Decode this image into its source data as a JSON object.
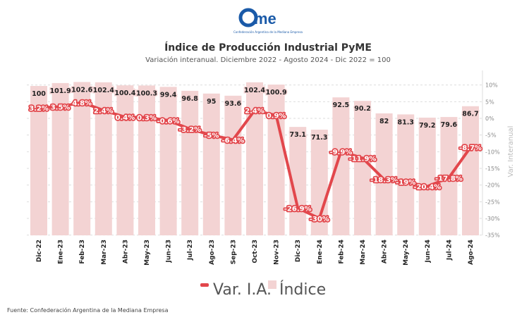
{
  "logo": {
    "text": "came",
    "tagline": "Confederación Argentina de la Mediana Empresa",
    "color": "#1a5aa8"
  },
  "chart_data": {
    "type": "bar+line",
    "title": "Índice de Producción Industrial PyME",
    "subtitle": "Variación interanual. Diciembre 2022 - Agosto 2024 - Dic 2022 = 100",
    "categories": [
      "Dic-22",
      "Ene-23",
      "Feb-23",
      "Mar-23",
      "Abr-23",
      "May-23",
      "Jun-23",
      "Jul-23",
      "Ago-23",
      "Sep-23",
      "Oct-23",
      "Nov-23",
      "Dic-23",
      "Ene-24",
      "Feb-24",
      "Mar-24",
      "Abr-24",
      "May-24",
      "Jun-24",
      "Jul-24",
      "Ago-24"
    ],
    "series": [
      {
        "name": "Var. I.A.",
        "type": "line",
        "color": "#e2474c",
        "unit": "%",
        "axis": "right",
        "values": [
          3.2,
          3.5,
          4.8,
          2.4,
          0.4,
          0.3,
          -0.6,
          -3.2,
          -5,
          -6.4,
          2.4,
          0.9,
          -26.9,
          -30,
          -9.9,
          -11.9,
          -18.3,
          -19,
          -20.4,
          -17.8,
          -8.7
        ]
      },
      {
        "name": "Índice",
        "type": "bar",
        "color": "#f3d3d3",
        "axis": "left-hidden",
        "values": [
          100,
          101.9,
          102.6,
          102.4,
          100.4,
          100.3,
          99.4,
          96.8,
          95,
          93.6,
          102.4,
          100.9,
          73.1,
          71.3,
          92.5,
          90.2,
          82,
          81.3,
          79.2,
          79.6,
          86.7
        ]
      }
    ],
    "y_right": {
      "label": "Var. Interanual",
      "range": [
        -35,
        10
      ],
      "ticks": [
        "10%",
        "5%",
        "0%",
        "-5%",
        "-10%",
        "-15%",
        "-20%",
        "-25%",
        "-30%",
        "-35%"
      ],
      "tick_values": [
        10,
        5,
        0,
        -5,
        -10,
        -15,
        -20,
        -25,
        -30,
        -35
      ]
    },
    "grid": "horizontal dashed",
    "legend_position": "bottom"
  },
  "source": "Fuente: Confederación Argentina de la Mediana Empresa"
}
